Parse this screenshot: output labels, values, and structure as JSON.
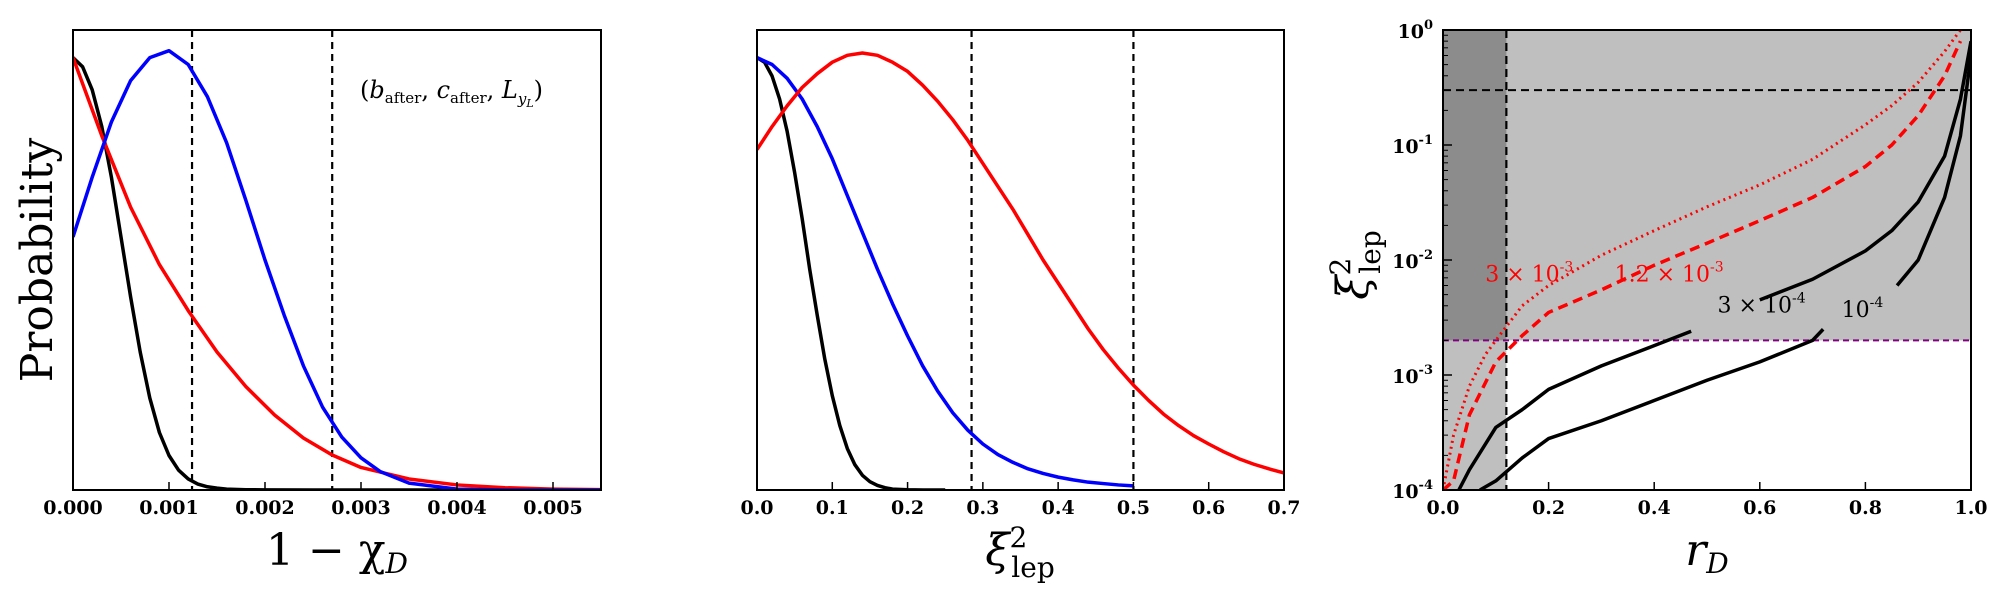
{
  "chart_data": [
    {
      "type": "line",
      "ylabel": "Probability",
      "xlabel": "1 − χ",
      "xlabel_sub": "D",
      "xlim": [
        0,
        0.0055
      ],
      "ylim": [
        0,
        1.0
      ],
      "xticks": [
        "0.000",
        "0.001",
        "0.002",
        "0.003",
        "0.004",
        "0.005"
      ],
      "annotation": "(b_after, c_after, L_yL)",
      "annotation_parts": {
        "open": "(",
        "b": "b",
        "b_sub": "after",
        "c": "c",
        "c_sub": "after",
        "L": "L",
        "L_sub": "y",
        "L_subsub": "L",
        "close": ")",
        "sep": ", "
      },
      "vlines": [
        0.00124,
        0.0027
      ],
      "series": [
        {
          "color": "#000000",
          "x": [
            0,
            0.0001,
            0.0002,
            0.0003,
            0.0004,
            0.0005,
            0.0006,
            0.0007,
            0.0008,
            0.0009,
            0.001,
            0.0011,
            0.0012,
            0.0013,
            0.0014,
            0.0015,
            0.0016,
            0.0018,
            0.002,
            0.0025,
            0.003,
            0.0055
          ],
          "y": [
            0.94,
            0.92,
            0.87,
            0.79,
            0.68,
            0.55,
            0.42,
            0.3,
            0.2,
            0.125,
            0.075,
            0.043,
            0.024,
            0.013,
            0.007,
            0.004,
            0.002,
            0.0006,
            0.0002,
            0,
            0,
            0
          ]
        },
        {
          "color": "#ff0000",
          "x": [
            0,
            0.0003,
            0.0006,
            0.0009,
            0.0012,
            0.0015,
            0.0018,
            0.0021,
            0.0024,
            0.0027,
            0.003,
            0.0035,
            0.004,
            0.0045,
            0.005,
            0.0055
          ],
          "y": [
            0.94,
            0.77,
            0.615,
            0.49,
            0.39,
            0.3,
            0.225,
            0.163,
            0.113,
            0.076,
            0.049,
            0.024,
            0.011,
            0.005,
            0.002,
            0.0007
          ]
        },
        {
          "color": "#0000ff",
          "x": [
            0,
            0.0002,
            0.0004,
            0.0006,
            0.0008,
            0.001,
            0.0012,
            0.0014,
            0.0016,
            0.0018,
            0.002,
            0.0022,
            0.0024,
            0.0026,
            0.0028,
            0.003,
            0.0032,
            0.0035,
            0.004,
            0.0045,
            0.0055
          ],
          "y": [
            0.55,
            0.68,
            0.8,
            0.89,
            0.94,
            0.955,
            0.925,
            0.855,
            0.755,
            0.63,
            0.5,
            0.38,
            0.27,
            0.18,
            0.115,
            0.07,
            0.04,
            0.015,
            0.002,
            0,
            0
          ]
        }
      ]
    },
    {
      "type": "line",
      "xlabel": "ξ",
      "xlabel_sup": "2",
      "xlabel_sub": "lep",
      "xlim": [
        0,
        0.7
      ],
      "ylim": [
        0,
        1.0
      ],
      "xticks": [
        "0.0",
        "0.1",
        "0.2",
        "0.3",
        "0.4",
        "0.5",
        "0.6",
        "0.7"
      ],
      "vlines": [
        0.285,
        0.5
      ],
      "series": [
        {
          "color": "#000000",
          "x": [
            0,
            0.01,
            0.02,
            0.03,
            0.04,
            0.05,
            0.06,
            0.07,
            0.08,
            0.09,
            0.1,
            0.11,
            0.12,
            0.13,
            0.14,
            0.15,
            0.16,
            0.17,
            0.18,
            0.2,
            0.22,
            0.25
          ],
          "y": [
            0.94,
            0.93,
            0.9,
            0.85,
            0.78,
            0.69,
            0.59,
            0.48,
            0.38,
            0.285,
            0.205,
            0.14,
            0.09,
            0.055,
            0.032,
            0.018,
            0.01,
            0.005,
            0.002,
            0.0005,
            0,
            0
          ]
        },
        {
          "color": "#0000ff",
          "x": [
            0,
            0.02,
            0.04,
            0.06,
            0.08,
            0.1,
            0.12,
            0.14,
            0.16,
            0.18,
            0.2,
            0.22,
            0.24,
            0.26,
            0.28,
            0.3,
            0.32,
            0.34,
            0.36,
            0.38,
            0.4,
            0.42,
            0.44,
            0.46,
            0.48,
            0.5
          ],
          "y": [
            0.94,
            0.925,
            0.895,
            0.85,
            0.79,
            0.72,
            0.64,
            0.56,
            0.48,
            0.405,
            0.335,
            0.27,
            0.215,
            0.168,
            0.13,
            0.1,
            0.077,
            0.06,
            0.046,
            0.036,
            0.028,
            0.022,
            0.017,
            0.014,
            0.011,
            0.009
          ]
        },
        {
          "color": "#ff0000",
          "x": [
            0,
            0.02,
            0.04,
            0.06,
            0.08,
            0.1,
            0.12,
            0.14,
            0.16,
            0.18,
            0.2,
            0.22,
            0.24,
            0.26,
            0.28,
            0.3,
            0.32,
            0.34,
            0.36,
            0.38,
            0.4,
            0.42,
            0.44,
            0.46,
            0.48,
            0.5,
            0.52,
            0.54,
            0.56,
            0.58,
            0.6,
            0.62,
            0.64,
            0.66,
            0.68,
            0.7
          ],
          "y": [
            0.74,
            0.79,
            0.835,
            0.875,
            0.905,
            0.93,
            0.945,
            0.95,
            0.945,
            0.93,
            0.91,
            0.88,
            0.845,
            0.805,
            0.76,
            0.71,
            0.66,
            0.61,
            0.555,
            0.5,
            0.45,
            0.4,
            0.35,
            0.305,
            0.265,
            0.228,
            0.195,
            0.165,
            0.14,
            0.118,
            0.1,
            0.083,
            0.068,
            0.056,
            0.046,
            0.037
          ]
        }
      ]
    },
    {
      "type": "line",
      "scale_y": "log",
      "xlabel": "r",
      "xlabel_sub": "D",
      "ylabel": "ξ",
      "ylabel_sup": "2",
      "ylabel_sub": "lep",
      "xlim": [
        0,
        1
      ],
      "ylim": [
        0.0001,
        1
      ],
      "xticks": [
        "0.0",
        "0.2",
        "0.4",
        "0.6",
        "0.8",
        "1.0"
      ],
      "yticks": [
        {
          "base": "10",
          "exp": "-4"
        },
        {
          "base": "10",
          "exp": "-3"
        },
        {
          "base": "10",
          "exp": "-2"
        },
        {
          "base": "10",
          "exp": "-1"
        },
        {
          "base": "10",
          "exp": "0"
        }
      ],
      "shading": {
        "light_color": "#bfbfbf",
        "dark_color": "#8c8c8c",
        "light_ymin": 0.002,
        "dark_xmax": 0.12
      },
      "hline_purple": 0.002,
      "hline_black": 0.3,
      "vline_black": 0.12,
      "curve_labels": [
        {
          "text": "3 × 10",
          "exp": "-3",
          "color": "#ff0000",
          "x": 0.08,
          "y": 0.0065
        },
        {
          "text": "1.2 × 10",
          "exp": "-3",
          "color": "#ff0000",
          "x": 0.325,
          "y": 0.0065
        },
        {
          "text": "3 × 10",
          "exp": "-4",
          "color": "#000000",
          "x": 0.52,
          "y": 0.0035
        },
        {
          "text": "10",
          "exp": "-4",
          "color": "#000000",
          "x": 0.755,
          "y": 0.0032
        }
      ],
      "series": [
        {
          "name": "3 × 10⁻³",
          "color": "#ff0000",
          "style": "dotted",
          "x": [
            0,
            0.02,
            0.05,
            0.08,
            0.1,
            0.15,
            0.2,
            0.3,
            0.4,
            0.5,
            0.6,
            0.7,
            0.8,
            0.85,
            0.9,
            0.95,
            0.98
          ],
          "y": [
            0.0001,
            0.0003,
            0.0008,
            0.0015,
            0.002,
            0.004,
            0.006,
            0.011,
            0.018,
            0.029,
            0.045,
            0.075,
            0.15,
            0.22,
            0.35,
            0.65,
            1.0
          ]
        },
        {
          "name": "1.2 × 10⁻³",
          "color": "#ff0000",
          "style": "dashed",
          "x": [
            0,
            0.02,
            0.05,
            0.1,
            0.15,
            0.2,
            0.3,
            0.4,
            0.5,
            0.6,
            0.7,
            0.8,
            0.85,
            0.9,
            0.95,
            0.98
          ],
          "y": [
            0.0001,
            0.00012,
            0.00045,
            0.0013,
            0.0022,
            0.0035,
            0.0055,
            0.009,
            0.014,
            0.022,
            0.035,
            0.065,
            0.1,
            0.18,
            0.4,
            0.8
          ]
        },
        {
          "name": "3 × 10⁻⁴",
          "color": "#000000",
          "style": "solid",
          "gap": [
            0.47,
            0.6
          ],
          "x": [
            0.03,
            0.05,
            0.1,
            0.15,
            0.2,
            0.3,
            0.4,
            0.47,
            0.6,
            0.7,
            0.8,
            0.85,
            0.9,
            0.95,
            0.98,
            1.0
          ],
          "y": [
            0.0001,
            0.00015,
            0.00035,
            0.0005,
            0.00075,
            0.0012,
            0.0018,
            0.0024,
            0.0045,
            0.0068,
            0.012,
            0.018,
            0.032,
            0.08,
            0.25,
            0.8
          ]
        },
        {
          "name": "10⁻⁴",
          "color": "#000000",
          "style": "solid",
          "gap": [
            0.72,
            0.86
          ],
          "x": [
            0.07,
            0.1,
            0.15,
            0.2,
            0.3,
            0.4,
            0.5,
            0.6,
            0.7,
            0.72,
            0.86,
            0.9,
            0.95,
            0.98,
            1.0
          ],
          "y": [
            0.0001,
            0.00012,
            0.00019,
            0.00028,
            0.0004,
            0.0006,
            0.0009,
            0.0013,
            0.002,
            0.0025,
            0.006,
            0.01,
            0.035,
            0.12,
            0.6
          ]
        }
      ]
    }
  ]
}
